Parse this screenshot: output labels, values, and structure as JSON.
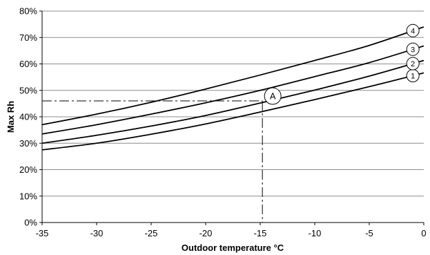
{
  "chart_data": {
    "type": "line",
    "title": "",
    "xlabel": "Outdoor temperature °C",
    "ylabel": "Max Rh",
    "xlim": [
      -35,
      0
    ],
    "ylim": [
      0,
      80
    ],
    "x_ticks": [
      "-35",
      "-30",
      "-25",
      "-20",
      "-15",
      "-10",
      "-5",
      "0"
    ],
    "y_ticks": [
      "0%",
      "10%",
      "20%",
      "30%",
      "40%",
      "50%",
      "60%",
      "70%",
      "80%"
    ],
    "grid": "horizontal",
    "series": [
      {
        "name": "1",
        "x": [
          -35,
          -30,
          -25,
          -20,
          -15,
          -10,
          -5,
          0
        ],
        "y": [
          27.5,
          30,
          33.4,
          37.3,
          41.8,
          46.5,
          51.4,
          56.6
        ]
      },
      {
        "name": "2",
        "x": [
          -35,
          -30,
          -25,
          -20,
          -15,
          -10,
          -5,
          0
        ],
        "y": [
          30,
          33,
          36.5,
          40.5,
          45.2,
          50.1,
          55.4,
          61.3
        ]
      },
      {
        "name": "3",
        "x": [
          -35,
          -30,
          -25,
          -20,
          -15,
          -10,
          -5,
          0
        ],
        "y": [
          33.5,
          37,
          41,
          45.3,
          50,
          55.2,
          60.5,
          66.8
        ]
      },
      {
        "name": "4",
        "x": [
          -35,
          -30,
          -25,
          -20,
          -15,
          -10,
          -5,
          0
        ],
        "y": [
          37,
          41,
          45.5,
          50.5,
          55.8,
          61.3,
          67,
          74
        ]
      }
    ],
    "annotation": {
      "label": "A",
      "x": -14.8,
      "y": 46
    }
  }
}
